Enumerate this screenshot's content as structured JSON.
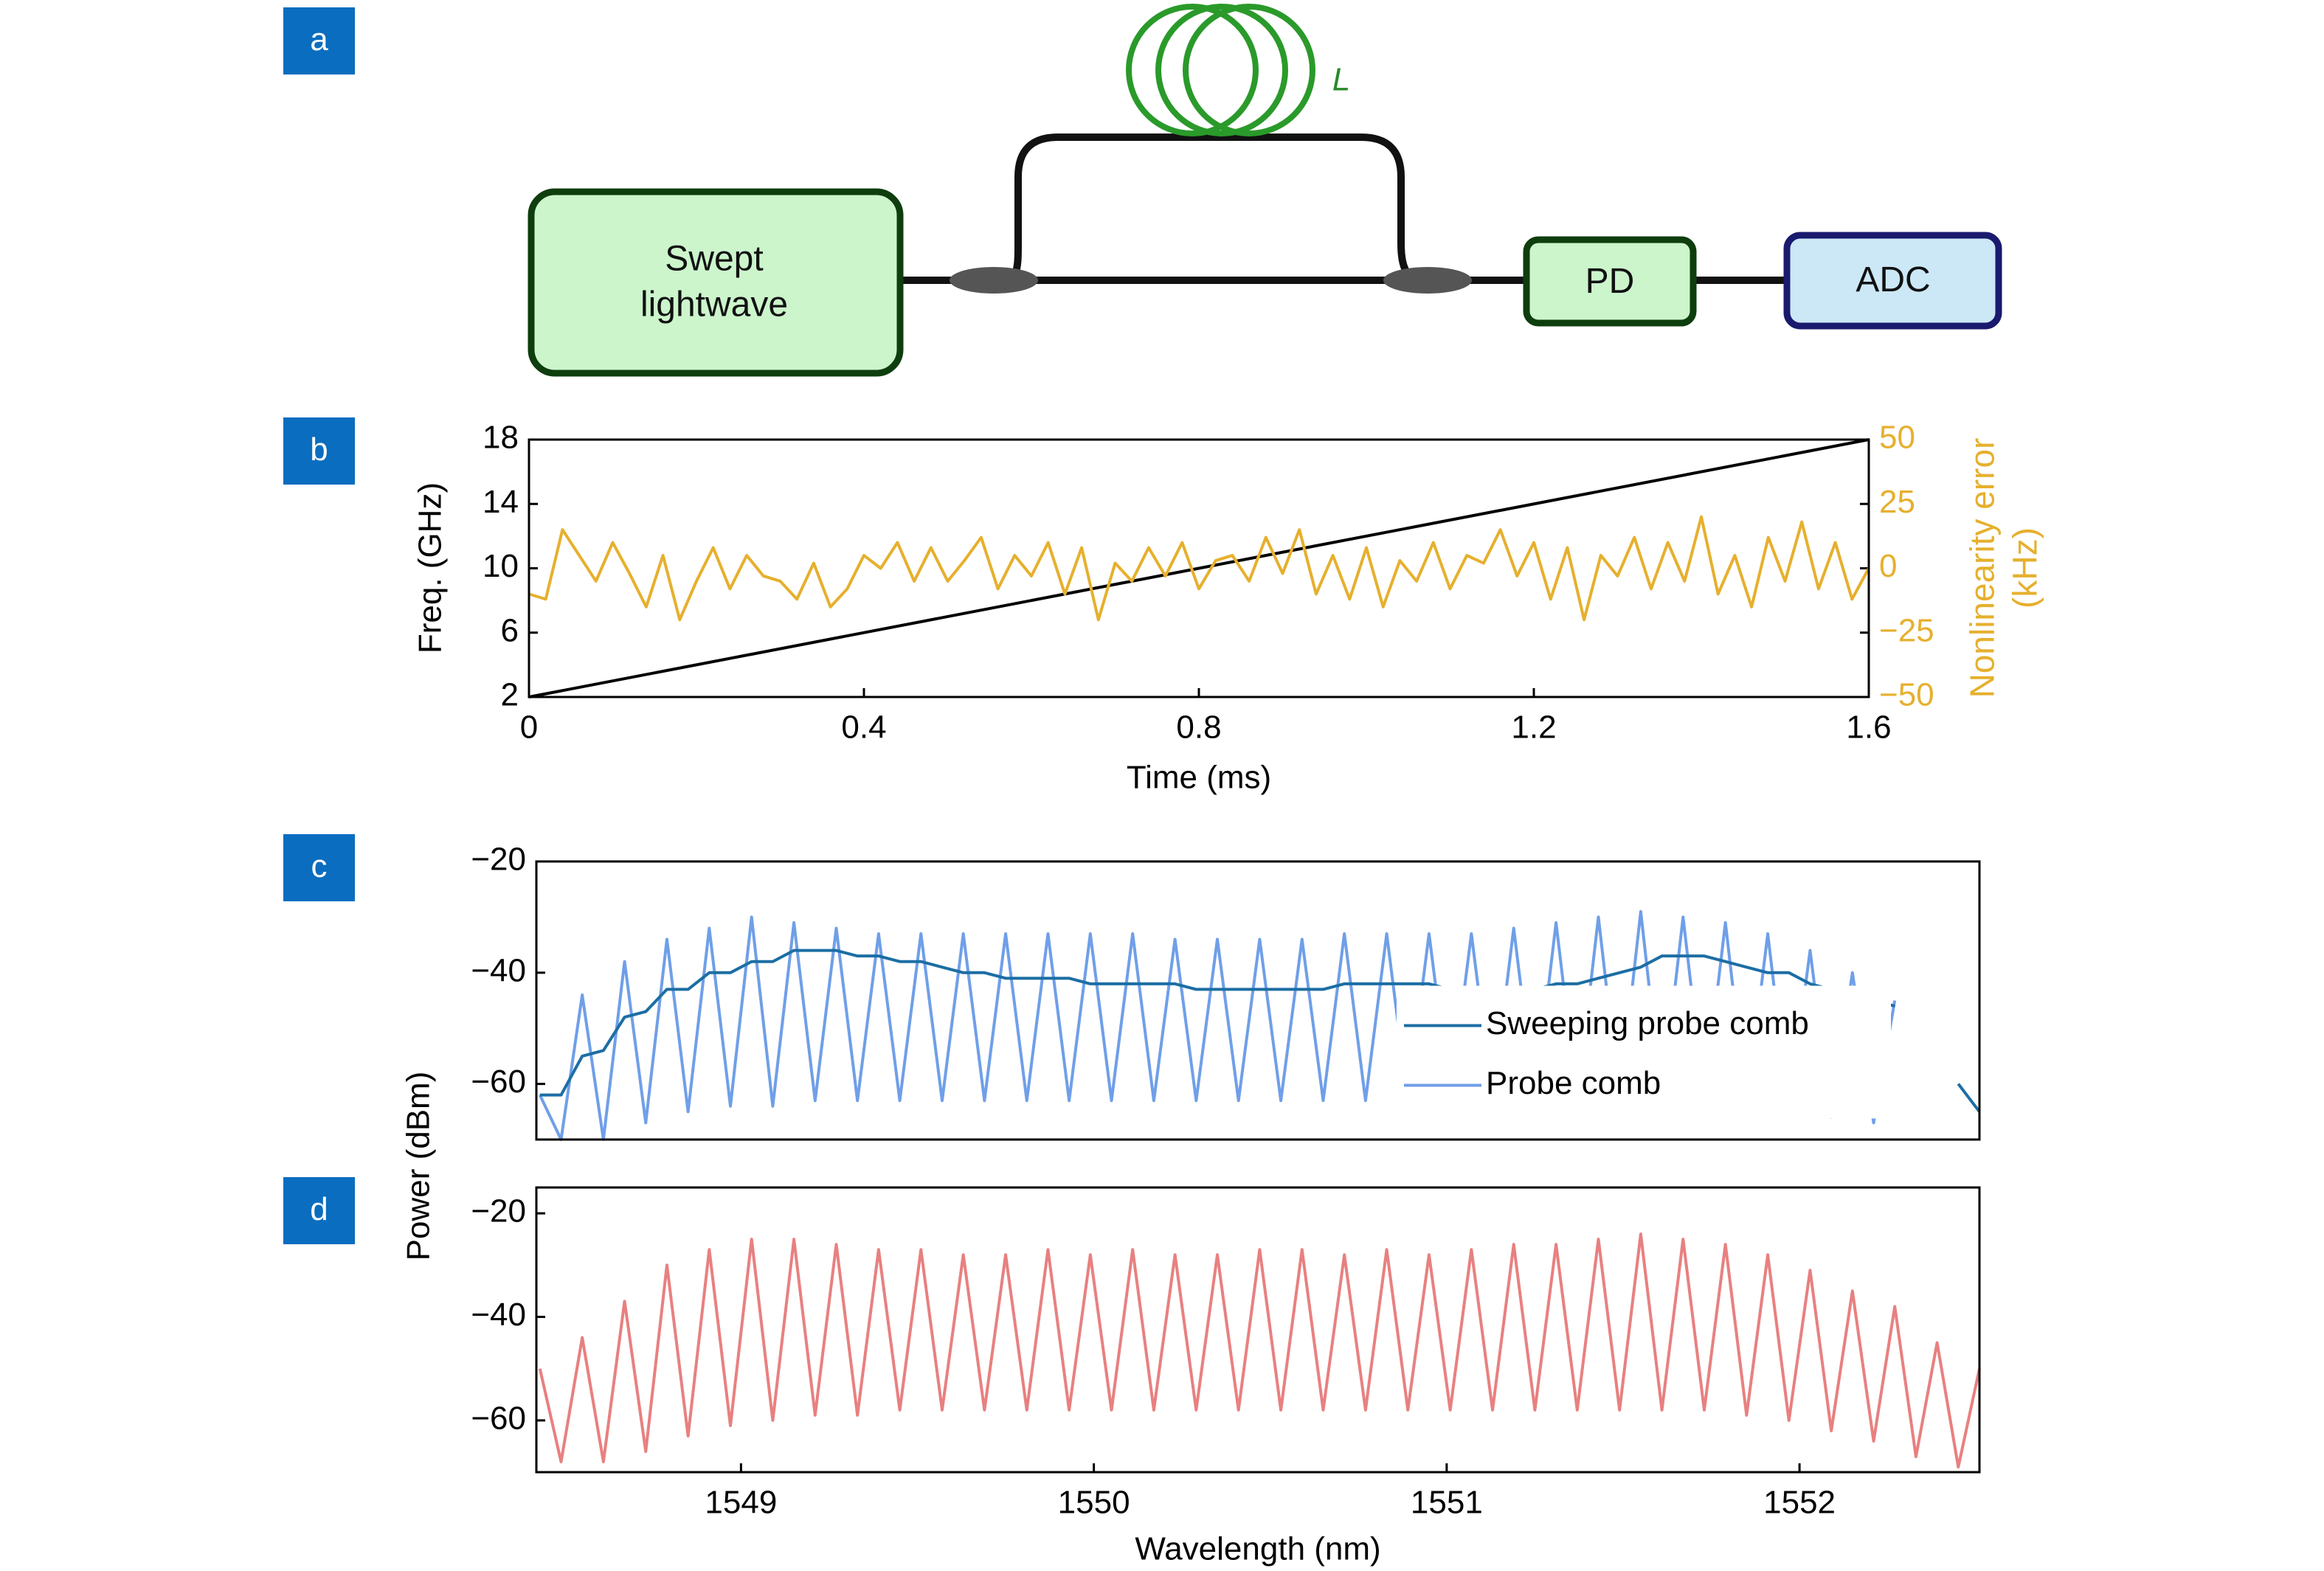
{
  "diagram": {
    "panels": [
      "a",
      "b",
      "c",
      "d"
    ],
    "source": "Swept lightwave",
    "fiber_label": "L",
    "detector": "PD",
    "converter": "ADC"
  },
  "chart_data": [
    {
      "type": "line",
      "xlabel": "Time (ms)",
      "ylabel": "Freq. (GHz)",
      "y2label": "Nonlinearity error (kHz)",
      "xlim": [
        0,
        1.6
      ],
      "xticks": [
        0,
        0.4,
        0.8,
        1.2,
        1.6
      ],
      "ylim": [
        2,
        18
      ],
      "yticks": [
        2,
        6,
        10,
        14,
        18
      ],
      "y2lim": [
        -50,
        50
      ],
      "y2ticks": [
        {
          "value": -50,
          "label": "−50"
        },
        {
          "value": -25,
          "label": "−25"
        },
        0,
        25,
        50
      ],
      "series": [
        {
          "color": "#e6b02e",
          "axis": "y2",
          "x": [
            0,
            0.02,
            0.04,
            0.06,
            0.08,
            0.1,
            0.12,
            0.14,
            0.16,
            0.18,
            0.2,
            0.22,
            0.24,
            0.26,
            0.28,
            0.3,
            0.32,
            0.34,
            0.36,
            0.38,
            0.4,
            0.42,
            0.44,
            0.46,
            0.48,
            0.5,
            0.52,
            0.54,
            0.56,
            0.58,
            0.6,
            0.62,
            0.64,
            0.66,
            0.68,
            0.7,
            0.72,
            0.74,
            0.76,
            0.78,
            0.8,
            0.82,
            0.84,
            0.86,
            0.88,
            0.9,
            0.92,
            0.94,
            0.96,
            0.98,
            1,
            1.02,
            1.04,
            1.06,
            1.08,
            1.1,
            1.12,
            1.14,
            1.16,
            1.18,
            1.2,
            1.22,
            1.24,
            1.26,
            1.28,
            1.3,
            1.32,
            1.34,
            1.36,
            1.38,
            1.4,
            1.42,
            1.44,
            1.46,
            1.48,
            1.5,
            1.52,
            1.54,
            1.56,
            1.58,
            1.6
          ],
          "values": [
            -10,
            -12,
            15,
            5,
            -5,
            10,
            -2,
            -15,
            5,
            -20,
            -5,
            8,
            -8,
            5,
            -3,
            -5,
            -12,
            2,
            -15,
            -8,
            5,
            0,
            10,
            -5,
            8,
            -5,
            3,
            12,
            -8,
            5,
            -3,
            10,
            -10,
            8,
            -20,
            2,
            -5,
            8,
            -3,
            10,
            -8,
            3,
            5,
            -5,
            12,
            -2,
            15,
            -10,
            5,
            -12,
            8,
            -15,
            3,
            -5,
            10,
            -8,
            5,
            2,
            15,
            -3,
            10,
            -12,
            8,
            -20,
            5,
            -3,
            12,
            -8,
            10,
            -5,
            20,
            -10,
            5,
            -15,
            12,
            -5,
            18,
            -8,
            10,
            -12,
            0
          ]
        },
        {
          "color": "#000000",
          "x": [
            0,
            1.6
          ],
          "values": [
            2,
            18
          ]
        }
      ]
    },
    {
      "type": "line",
      "ylabel": "Power (dBm)",
      "legend": "right",
      "xlim": [
        1548.42,
        1552.51
      ],
      "ylim": [
        -70,
        -20
      ],
      "yticks": [
        {
          "value": -20,
          "label": "−20"
        },
        {
          "value": -40,
          "label": "−40"
        },
        {
          "value": -60,
          "label": "−60"
        }
      ],
      "x": [
        1548.43,
        1548.49,
        1548.55,
        1548.61,
        1548.67,
        1548.73,
        1548.79,
        1548.85,
        1548.91,
        1548.97,
        1549.03,
        1549.09,
        1549.15,
        1549.21,
        1549.27,
        1549.33,
        1549.39,
        1549.45,
        1549.51,
        1549.57,
        1549.63,
        1549.69,
        1549.75,
        1549.81,
        1549.87,
        1549.93,
        1549.99,
        1550.05,
        1550.11,
        1550.17,
        1550.23,
        1550.29,
        1550.35,
        1550.41,
        1550.47,
        1550.53,
        1550.59,
        1550.65,
        1550.71,
        1550.77,
        1550.83,
        1550.89,
        1550.95,
        1551.01,
        1551.07,
        1551.13,
        1551.19,
        1551.25,
        1551.31,
        1551.37,
        1551.43,
        1551.49,
        1551.55,
        1551.61,
        1551.67,
        1551.73,
        1551.79,
        1551.85,
        1551.91,
        1551.97,
        1552.03,
        1552.09,
        1552.15,
        1552.21,
        1552.27,
        1552.33,
        1552.39,
        1552.45,
        1552.51
      ],
      "series": [
        {
          "name": "Sweeping probe comb",
          "color": "#1c6ea4",
          "values": [
            -62,
            -62,
            -55,
            -54,
            -48,
            -47,
            -43,
            -43,
            -40,
            -40,
            -38,
            -38,
            -36,
            -36,
            -36,
            -37,
            -37,
            -38,
            -38,
            -39,
            -40,
            -40,
            -41,
            -41,
            -41,
            -41,
            -42,
            -42,
            -42,
            -42,
            -42,
            -43,
            -43,
            -43,
            -43,
            -43,
            -43,
            -43,
            -42,
            -42,
            -42,
            -42,
            -42,
            -43,
            -43,
            -43,
            -43,
            -43,
            -42,
            -42,
            -41,
            -40,
            -39,
            -37,
            -37,
            -37,
            -38,
            -39,
            -40,
            -40,
            -42,
            -43,
            -44,
            -45,
            -46,
            null,
            null,
            -60,
            -65
          ]
        },
        {
          "name": "Probe comb",
          "color": "#6f9fe8",
          "values": [
            -62,
            -70,
            -44,
            -70,
            -38,
            -67,
            -34,
            -65,
            -32,
            -64,
            -30,
            -64,
            -31,
            -63,
            -32,
            -63,
            -33,
            -63,
            -33,
            -63,
            -33,
            -63,
            -33,
            -63,
            -33,
            -63,
            -33,
            -63,
            -33,
            -63,
            -34,
            -63,
            -34,
            -63,
            -34,
            -63,
            -34,
            -63,
            -33,
            -63,
            -33,
            -63,
            -33,
            -63,
            -33,
            -63,
            -32,
            -63,
            -31,
            -63,
            -30,
            -63,
            -29,
            -63,
            -30,
            -63,
            -31,
            -64,
            -33,
            -65,
            -36,
            -66,
            -40,
            -67,
            -45,
            null,
            null,
            null,
            null
          ]
        }
      ]
    },
    {
      "type": "line",
      "xlabel": "Wavelength (nm)",
      "xlim": [
        1548.42,
        1552.51
      ],
      "xticks": [
        1549,
        1550,
        1551,
        1552
      ],
      "ylim": [
        -70,
        -15
      ],
      "yticks": [
        {
          "value": -20,
          "label": "−20"
        },
        {
          "value": -40,
          "label": "−40"
        },
        {
          "value": -60,
          "label": "−60"
        }
      ],
      "x": [
        1548.43,
        1548.49,
        1548.55,
        1548.61,
        1548.67,
        1548.73,
        1548.79,
        1548.85,
        1548.91,
        1548.97,
        1549.03,
        1549.09,
        1549.15,
        1549.21,
        1549.27,
        1549.33,
        1549.39,
        1549.45,
        1549.51,
        1549.57,
        1549.63,
        1549.69,
        1549.75,
        1549.81,
        1549.87,
        1549.93,
        1549.99,
        1550.05,
        1550.11,
        1550.17,
        1550.23,
        1550.29,
        1550.35,
        1550.41,
        1550.47,
        1550.53,
        1550.59,
        1550.65,
        1550.71,
        1550.77,
        1550.83,
        1550.89,
        1550.95,
        1551.01,
        1551.07,
        1551.13,
        1551.19,
        1551.25,
        1551.31,
        1551.37,
        1551.43,
        1551.49,
        1551.55,
        1551.61,
        1551.67,
        1551.73,
        1551.79,
        1551.85,
        1551.91,
        1551.97,
        1552.03,
        1552.09,
        1552.15,
        1552.21,
        1552.27,
        1552.33,
        1552.39,
        1552.45,
        1552.51
      ],
      "series": [
        {
          "color": "#e88080",
          "values": [
            -50,
            -68,
            -44,
            -68,
            -37,
            -66,
            -30,
            -63,
            -27,
            -61,
            -25,
            -60,
            -25,
            -59,
            -26,
            -59,
            -27,
            -58,
            -27,
            -58,
            -28,
            -58,
            -28,
            -58,
            -27,
            -58,
            -28,
            -58,
            -27,
            -58,
            -28,
            -58,
            -28,
            -58,
            -27,
            -58,
            -27,
            -58,
            -28,
            -58,
            -27,
            -58,
            -28,
            -58,
            -27,
            -58,
            -26,
            -58,
            -26,
            -58,
            -25,
            -58,
            -24,
            -58,
            -25,
            -58,
            -26,
            -59,
            -28,
            -60,
            -31,
            -62,
            -35,
            -64,
            -38,
            -67,
            -45,
            -69,
            -50
          ]
        }
      ]
    }
  ]
}
